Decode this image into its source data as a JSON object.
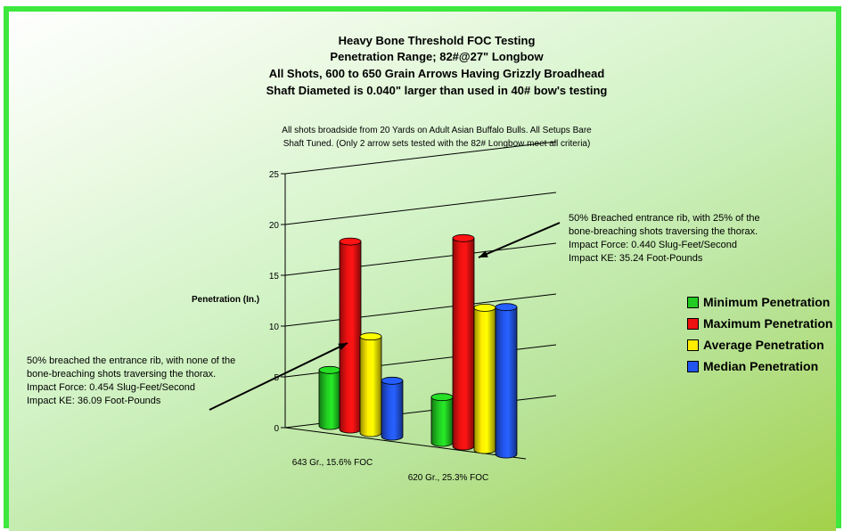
{
  "chart_data": {
    "type": "bar",
    "title": [
      "Heavy Bone Threshold FOC Testing",
      "Penetration Range; 82#@27\" Longbow",
      "All Shots, 600 to 650 Grain Arrows Having Grizzly Broadhead",
      "Shaft Diameted is 0.040\" larger than used in 40# bow's testing"
    ],
    "subtitle": [
      "All shots broadside from 20 Yards on Adult Asian Buffalo Bulls. All Setups Bare",
      "Shaft Tuned. (Only 2 arrow sets tested with the 82# Longbow meet all criteria)"
    ],
    "ylabel": "Penetration (In.)",
    "ylim": [
      0,
      25
    ],
    "yticks": [
      "0",
      "5",
      "10",
      "15",
      "20",
      "25"
    ],
    "categories": [
      "643 Gr., 15.6% FOC",
      "620 Gr., 25.3% FOC"
    ],
    "series": [
      {
        "name": "Minimum Penetration",
        "color": "#22cc22",
        "values": [
          5.5,
          4.5
        ]
      },
      {
        "name": "Maximum Penetration",
        "color": "#ee1111",
        "values": [
          18.5,
          20.5
        ]
      },
      {
        "name": "Average Penetration",
        "color": "#ffee00",
        "values": [
          9.5,
          14
        ]
      },
      {
        "name": "Median Penetration",
        "color": "#2255ee",
        "values": [
          5.5,
          14.5
        ]
      }
    ],
    "legend_position": "right",
    "grid": true,
    "annotations": [
      [
        "50% breached the entrance rib, with none of the",
        "bone-breaching shots traversing the thorax.",
        "Impact Force: 0.454 Slug-Feet/Second",
        "Impact KE: 36.09 Foot-Pounds"
      ],
      [
        "50% Breached entrance rib, with 25% of the",
        "bone-breaching shots traversing the thorax.",
        "Impact Force: 0.440 Slug-Feet/Second",
        "Impact KE: 35.24 Foot-Pounds"
      ]
    ]
  }
}
